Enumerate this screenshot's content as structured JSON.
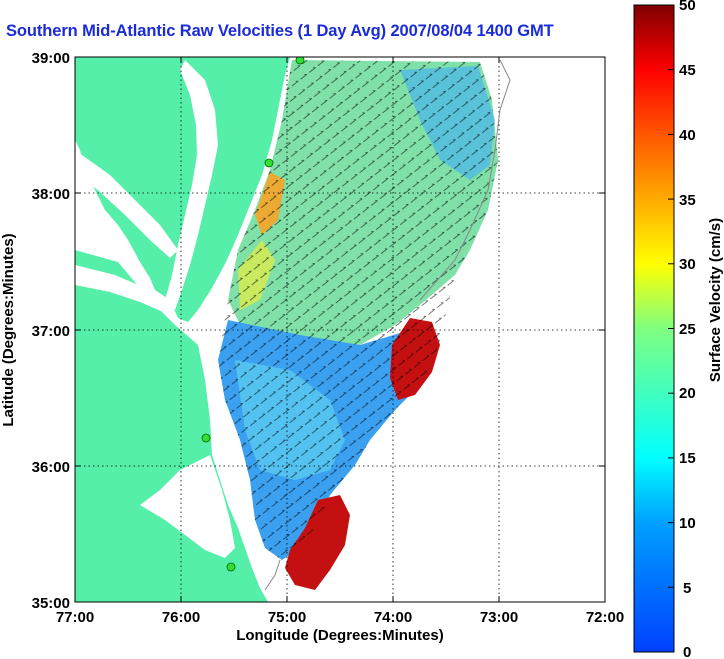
{
  "title": "Southern Mid-Atlantic Raw Velocities (1 Day Avg) 2007/08/04 1400 GMT",
  "x_axis": {
    "label": "Longitude (Degrees:Minutes)",
    "ticks": [
      "77:00",
      "76:00",
      "75:00",
      "74:00",
      "73:00",
      "72:00"
    ]
  },
  "y_axis": {
    "label": "Latitude (Degrees:Minutes)",
    "ticks": [
      "39:00",
      "38:00",
      "37:00",
      "36:00",
      "35:00"
    ]
  },
  "colorbar": {
    "label": "Surface Velocity (cm/s)",
    "ticks": [
      "50",
      "45",
      "40",
      "35",
      "30",
      "25",
      "20",
      "15",
      "10",
      "5",
      "0"
    ],
    "range": [
      0,
      50
    ],
    "colors": [
      "#0000ff",
      "#00ffff",
      "#ffff00",
      "#ff0000",
      "#800000"
    ]
  },
  "map": {
    "extent": {
      "lon": [
        -77,
        -72
      ],
      "lat": [
        35,
        39
      ]
    },
    "land_color": "#55efaa",
    "water_color": "#ffffff",
    "grid": "dotted",
    "colormap": "jet"
  }
}
